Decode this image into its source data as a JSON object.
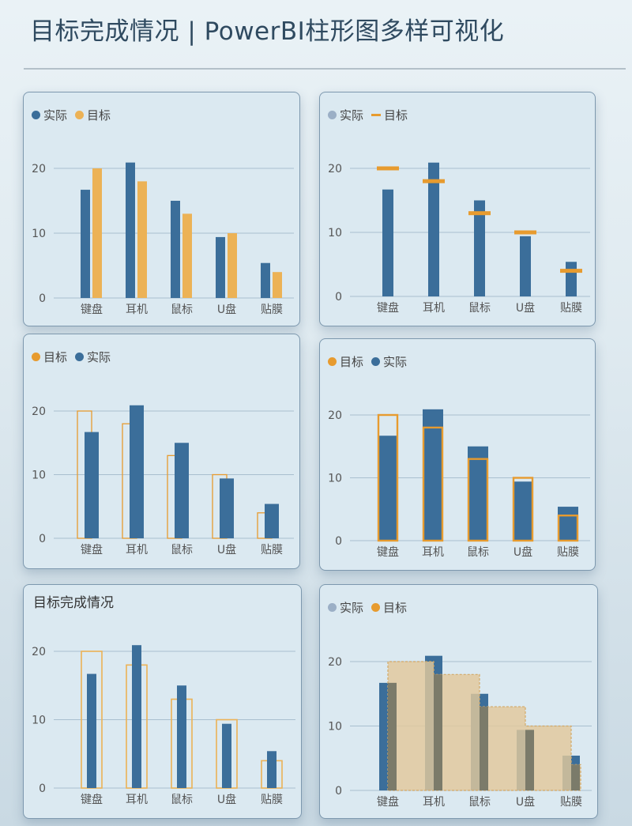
{
  "page": {
    "title": "目标完成情况 | PowerBI柱形图多样可视化"
  },
  "colors": {
    "actual": "#3b6e9a",
    "target": "#ecb256",
    "target_dark": "#e79b2f",
    "grid": "#a9bfcf",
    "overlay": "#7b7b6a",
    "fill_target": "#e2c89b"
  },
  "legend": {
    "actual": "实际",
    "target": "目标"
  },
  "chart_data": [
    {
      "type": "bar",
      "variant": "clustered",
      "categories": [
        "键盘",
        "耳机",
        "鼠标",
        "U盘",
        "贴膜"
      ],
      "series": [
        {
          "name": "实际",
          "values": [
            16.7,
            20.9,
            15,
            9.4,
            5.4
          ]
        },
        {
          "name": "目标",
          "values": [
            20,
            18,
            13,
            10,
            4
          ]
        }
      ],
      "ylim": [
        0,
        20
      ],
      "yticks": [
        0,
        10,
        20
      ],
      "legend_order": [
        "实际",
        "目标"
      ]
    },
    {
      "type": "bar",
      "variant": "bar-with-target-marker",
      "categories": [
        "键盘",
        "耳机",
        "鼠标",
        "U盘",
        "贴膜"
      ],
      "series": [
        {
          "name": "实际",
          "values": [
            16.7,
            20.9,
            15,
            9.4,
            5.4
          ]
        },
        {
          "name": "目标",
          "values": [
            20,
            18,
            13,
            10,
            4
          ]
        }
      ],
      "ylim": [
        0,
        20
      ],
      "yticks": [
        0,
        10,
        20
      ],
      "legend_order": [
        "实际",
        "目标"
      ]
    },
    {
      "type": "bar",
      "variant": "outline-target-offset",
      "categories": [
        "键盘",
        "耳机",
        "鼠标",
        "U盘",
        "贴膜"
      ],
      "series": [
        {
          "name": "实际",
          "values": [
            16.7,
            20.9,
            15,
            9.4,
            5.4
          ]
        },
        {
          "name": "目标",
          "values": [
            20,
            18,
            13,
            10,
            4
          ]
        }
      ],
      "ylim": [
        0,
        20
      ],
      "yticks": [
        0,
        10,
        20
      ],
      "legend_order": [
        "目标",
        "实际"
      ]
    },
    {
      "type": "bar",
      "variant": "overlap-outline-target",
      "categories": [
        "键盘",
        "耳机",
        "鼠标",
        "U盘",
        "贴膜"
      ],
      "series": [
        {
          "name": "实际",
          "values": [
            16.7,
            20.9,
            15,
            9.4,
            5.4
          ]
        },
        {
          "name": "目标",
          "values": [
            20,
            18,
            13,
            10,
            4
          ]
        }
      ],
      "ylim": [
        0,
        20
      ],
      "yticks": [
        0,
        10,
        20
      ],
      "legend_order": [
        "目标",
        "实际"
      ]
    },
    {
      "type": "bar",
      "variant": "outline-target-wide",
      "title": "目标完成情况",
      "categories": [
        "键盘",
        "耳机",
        "鼠标",
        "U盘",
        "贴膜"
      ],
      "series": [
        {
          "name": "实际",
          "values": [
            16.7,
            20.9,
            15,
            9.4,
            5.4
          ]
        },
        {
          "name": "目标",
          "values": [
            20,
            18,
            13,
            10,
            4
          ]
        }
      ],
      "ylim": [
        0,
        20
      ],
      "yticks": [
        0,
        10,
        20
      ]
    },
    {
      "type": "bar",
      "variant": "target-step-area",
      "categories": [
        "键盘",
        "耳机",
        "鼠标",
        "U盘",
        "贴膜"
      ],
      "series": [
        {
          "name": "实际",
          "values": [
            16.7,
            20.9,
            15,
            9.4,
            5.4
          ]
        },
        {
          "name": "目标",
          "values": [
            20,
            18,
            13,
            10,
            4
          ]
        }
      ],
      "ylim": [
        0,
        20
      ],
      "yticks": [
        0,
        10,
        20
      ],
      "legend_order": [
        "实际",
        "目标"
      ]
    }
  ]
}
